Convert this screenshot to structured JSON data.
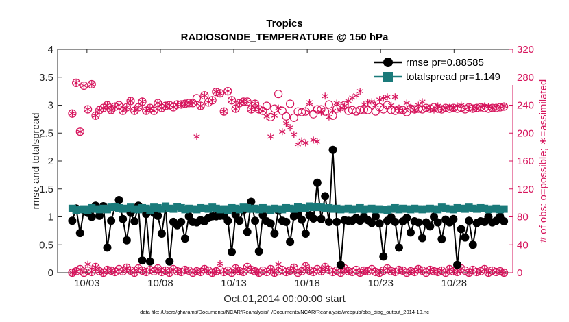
{
  "chart_data": {
    "type": "line",
    "title": "Tropics",
    "subtitle": "RADIOSONDE_TEMPERATURE @ 150 hPa",
    "xlabel": "Oct.01,2014 00:00:00 start",
    "ylabel_left": "rmse and totalspread",
    "ylabel_right": "# of obs: o=possible; ∗=assimilated",
    "footnote": "data file: /Users/gharamti/Documents/NCAR/Reanalysis/~/Documents/NCAR/Reanalysis/webpub/obs_diag_output_2014-10.nc",
    "x_unit": "days since Oct.01,2014",
    "xlim": [
      1,
      32
    ],
    "x_tick_values": [
      3,
      8,
      13,
      18,
      23,
      28
    ],
    "x_tick_labels": [
      "10/03",
      "10/08",
      "10/13",
      "10/18",
      "10/23",
      "10/28"
    ],
    "ylim_left": [
      0,
      4
    ],
    "y_ticks_left": [
      "0",
      "0.5",
      "1",
      "1.5",
      "2",
      "2.5",
      "3",
      "3.5",
      "4"
    ],
    "ylim_right": [
      0,
      320
    ],
    "y_ticks_right": [
      "0",
      "40",
      "80",
      "120",
      "160",
      "200",
      "240",
      "280",
      "320"
    ],
    "colors": {
      "rmse": "#000000",
      "spread": "#1a7a7a",
      "obs": "#d6145c",
      "axis": "#262626"
    },
    "series": [
      {
        "name": "rmse",
        "legend": "rmse pr=0.88585",
        "axis": "left",
        "values": [
          0.93,
          1.15,
          0.71,
          1.12,
          1.07,
          1.0,
          1.2,
          1.02,
          1.19,
          0.45,
          0.93,
          1.18,
          1.3,
          0.96,
          0.58,
          1.07,
          0.92,
          1.2,
          0.22,
          1.05,
          0.2,
          1.07,
          1.02,
          0.7,
          1.17,
          0.2,
          0.91,
          0.85,
          0.91,
          0.61,
          1.01,
          0.91,
          0.9,
          0.94,
          0.92,
          0.98,
          1.01,
          1.01,
          1.02,
          1.02,
          0.93,
          0.37,
          1.04,
          0.93,
          1.12,
          0.73,
          1.27,
          0.93,
          0.38,
          1.03,
          0.92,
          0.88,
          0.7,
          1.11,
          0.93,
          0.91,
          0.55,
          1.01,
          1.05,
          0.95,
          0.7,
          1.03,
          0.97,
          1.61,
          0.96,
          1.37,
          0.91,
          2.2,
          0.91,
          0.14,
          0.94,
          0.93,
          0.93,
          0.98,
          0.93,
          1.0,
          0.94,
          0.89,
          1.01,
          0.88,
          0.29,
          0.93,
          0.99,
          0.91,
          0.45,
          0.92,
          0.98,
          0.72,
          0.92,
          0.9,
          0.62,
          0.9,
          0.83,
          1.0,
          0.9,
          0.6,
          0.95,
          0.9,
          0.96,
          0.14,
          0.78,
          0.63,
          0.93,
          0.5,
          0.89,
          0.92,
          0.91,
          1.0,
          0.9,
          0.93,
          1.0,
          0.92
        ]
      },
      {
        "name": "totalspread",
        "legend": "totalspread pr=1.149",
        "axis": "left",
        "values": [
          1.15,
          1.12,
          1.13,
          1.14,
          1.12,
          1.16,
          1.14,
          1.13,
          1.15,
          1.13,
          1.17,
          1.18,
          1.16,
          1.14,
          1.15,
          1.17,
          1.14,
          1.13,
          1.16,
          1.15,
          1.12,
          1.17,
          1.16,
          1.14,
          1.19,
          1.15,
          1.14,
          1.18,
          1.16,
          1.13,
          1.15,
          1.14,
          1.13,
          1.16,
          1.15,
          1.14,
          1.17,
          1.15,
          1.13,
          1.14,
          1.12,
          1.16,
          1.15,
          1.13,
          1.17,
          1.16,
          1.14,
          1.15,
          1.13,
          1.16,
          1.14,
          1.12,
          1.15,
          1.14,
          1.13,
          1.16,
          1.15,
          1.14,
          1.18,
          1.16,
          1.15,
          1.19,
          1.17,
          1.18,
          1.17,
          1.15,
          1.16,
          1.14,
          1.15,
          1.13,
          1.14,
          1.15,
          1.13,
          1.14,
          1.16,
          1.13,
          1.14,
          1.15,
          1.13,
          1.14,
          1.13,
          1.12,
          1.14,
          1.16,
          1.13,
          1.15,
          1.14,
          1.13,
          1.15,
          1.14,
          1.13,
          1.14,
          1.15,
          1.14,
          1.13,
          1.17,
          1.15,
          1.14,
          1.13,
          1.16,
          1.15,
          1.14,
          1.17,
          1.15,
          1.14,
          1.16,
          1.15,
          1.13,
          1.14,
          1.15,
          1.13,
          1.14
        ]
      },
      {
        "name": "obs possible",
        "axis": "right",
        "values": [
          228,
          272,
          202,
          268,
          234,
          270,
          225,
          233,
          236,
          240,
          233,
          238,
          240,
          232,
          237,
          246,
          232,
          237,
          245,
          232,
          236,
          232,
          243,
          236,
          239,
          240,
          237,
          241,
          241,
          242,
          243,
          243,
          250,
          239,
          254,
          244,
          247,
          259,
          257,
          231,
          260,
          247,
          235,
          243,
          245,
          245,
          234,
          242,
          234,
          232,
          239,
          223,
          235,
          256,
          232,
          224,
          242,
          222,
          231,
          230,
          231,
          236,
          227,
          234,
          234,
          231,
          241,
          225,
          235,
          238,
          240,
          232,
          233,
          231,
          233,
          234,
          233,
          241,
          231,
          237,
          234,
          240,
          233,
          232,
          234,
          233,
          230,
          235,
          234,
          235,
          234,
          236,
          235,
          237,
          235,
          234,
          236,
          235,
          236,
          235,
          236,
          234,
          237,
          235,
          236,
          237,
          236,
          235,
          236,
          236,
          237,
          238
        ]
      },
      {
        "name": "obs assimilated",
        "axis": "right",
        "values": [
          228,
          272,
          202,
          268,
          234,
          270,
          225,
          233,
          236,
          240,
          233,
          238,
          240,
          232,
          237,
          246,
          232,
          237,
          245,
          232,
          236,
          232,
          243,
          236,
          239,
          240,
          237,
          241,
          241,
          242,
          243,
          243,
          195,
          239,
          254,
          244,
          247,
          259,
          257,
          231,
          260,
          247,
          235,
          243,
          245,
          245,
          234,
          242,
          234,
          232,
          224,
          195,
          225,
          236,
          202,
          214,
          208,
          198,
          184,
          189,
          186,
          244,
          190,
          188,
          230,
          253,
          223,
          232,
          243,
          234,
          239,
          246,
          251,
          254,
          260,
          241,
          244,
          245,
          240,
          248,
          250,
          252,
          240,
          252,
          236,
          232,
          243,
          237,
          233,
          240,
          245,
          236,
          234,
          233,
          239,
          235,
          236,
          237,
          236,
          239,
          240,
          234,
          238,
          235,
          236,
          237,
          239,
          238,
          236,
          237,
          238,
          239
        ]
      },
      {
        "name": "obs possible (low)",
        "axis": "right",
        "values": [
          0,
          2,
          5,
          0,
          3,
          1,
          8,
          2,
          0,
          4,
          3,
          1,
          5,
          2,
          7,
          3,
          0,
          6,
          3,
          1,
          4,
          2,
          6,
          1,
          3,
          0,
          5,
          2,
          1,
          4,
          3,
          0,
          2,
          1,
          5,
          3,
          0,
          2,
          4,
          1,
          3,
          0,
          6,
          2,
          1,
          8,
          4,
          2,
          0,
          3,
          1,
          5,
          0,
          2,
          4,
          1,
          3,
          7,
          0,
          2,
          9,
          3,
          1,
          5,
          2,
          8,
          4,
          1,
          3,
          0,
          6,
          2,
          1,
          4,
          0,
          3,
          2,
          5,
          1,
          0,
          3,
          6,
          2,
          1,
          4,
          3,
          0,
          2,
          1,
          5,
          3,
          0,
          4,
          2,
          1,
          3,
          0,
          5,
          2,
          1,
          6,
          3,
          0,
          4,
          1,
          2,
          5,
          0,
          3,
          1,
          2,
          0
        ]
      },
      {
        "name": "obs assimilated (low)",
        "axis": "right",
        "values": [
          0,
          2,
          5,
          0,
          12,
          1,
          8,
          2,
          0,
          4,
          3,
          1,
          5,
          2,
          7,
          3,
          0,
          6,
          3,
          1,
          4,
          2,
          6,
          1,
          3,
          0,
          5,
          2,
          1,
          4,
          3,
          0,
          2,
          1,
          5,
          3,
          0,
          2,
          13,
          1,
          3,
          0,
          6,
          2,
          1,
          8,
          4,
          2,
          0,
          3,
          1,
          5,
          0,
          12,
          4,
          1,
          3,
          7,
          0,
          2,
          9,
          3,
          1,
          5,
          2,
          8,
          4,
          1,
          3,
          0,
          6,
          2,
          1,
          4,
          0,
          3,
          2,
          5,
          1,
          0,
          3,
          6,
          2,
          1,
          4,
          3,
          0,
          2,
          1,
          5,
          3,
          0,
          4,
          2,
          1,
          3,
          0,
          5,
          2,
          1,
          6,
          3,
          0,
          4,
          1,
          2,
          5,
          0,
          3,
          1,
          2,
          0
        ]
      }
    ]
  }
}
